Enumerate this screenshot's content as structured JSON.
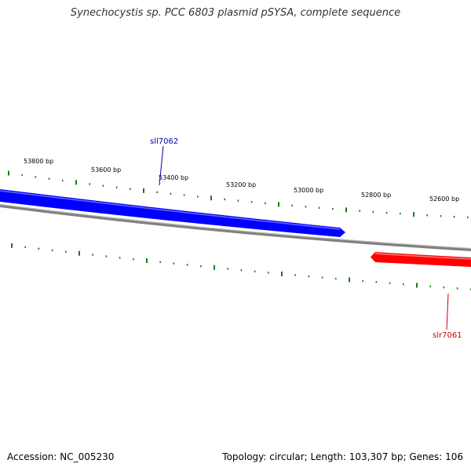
{
  "title": "Synechocystis sp. PCC 6803 plasmid pSYSA, complete sequence",
  "footer": {
    "accession": "Accession: NC_005230",
    "summary": "Topology: circular; Length: 103,307 bp; Genes: 106"
  },
  "ruler": {
    "labels": [
      "53800 bp",
      "53600 bp",
      "53400 bp",
      "53200 bp",
      "53000 bp",
      "52800 bp",
      "52600 bp"
    ]
  },
  "genes": [
    {
      "name": "sll7062",
      "strand": "forward",
      "color": "#0000ff"
    },
    {
      "name": "slr7061",
      "strand": "reverse",
      "color": "#ff0000"
    }
  ],
  "colors": {
    "backbone": "#808080",
    "ticks": "#1a7a1a"
  }
}
